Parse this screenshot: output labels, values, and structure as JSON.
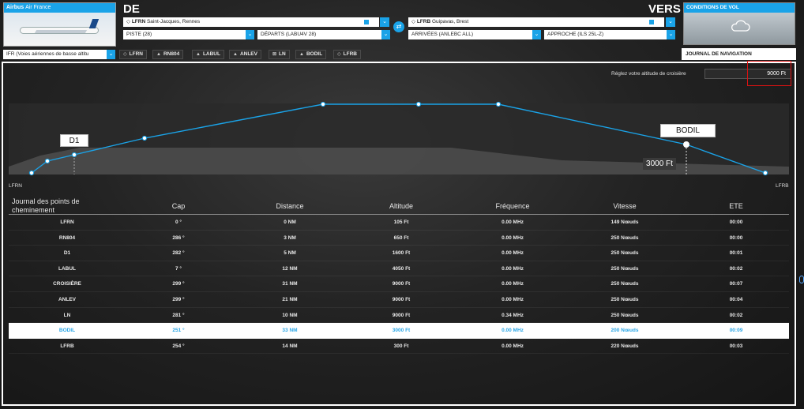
{
  "aircraft": {
    "maker": "Airbus",
    "operator": "Air France"
  },
  "departure": {
    "heading": "DE",
    "airport_code": "LFRN",
    "airport_name": "Saint-Jacques, Rennes",
    "runway": "PISTE (28)",
    "procedure": "DÉPARTS (LABU4V 28)"
  },
  "arrival": {
    "heading": "VERS",
    "airport_code": "LFRB",
    "airport_name": "Guipavas, Brest",
    "procedure": "ARRIVÉES (ANLEBC ALL)",
    "approach": "APPROCHE (ILS 25L-Z)"
  },
  "weather": {
    "title": "CONDITIONS DE VOL",
    "icon": "cloud-icon"
  },
  "route_type": "IFR (Voies aériennes de basse altitu",
  "route_chips": [
    {
      "icon": "airport",
      "label": "LFRN"
    },
    {
      "icon": "triangle",
      "label": "RN804"
    },
    {
      "icon": "triangle",
      "label": "LABUL"
    },
    {
      "icon": "triangle",
      "label": "ANLEV"
    },
    {
      "icon": "vor",
      "label": "LN"
    },
    {
      "icon": "triangle",
      "label": "BODIL"
    },
    {
      "icon": "airport",
      "label": "LFRB"
    }
  ],
  "tabs": {
    "nav_log": "JOURNAL DE NAVIGATION"
  },
  "cruise": {
    "label": "Réglez votre altitude de croisière",
    "value": "9000 Ft"
  },
  "profile": {
    "start_label": "LFRN",
    "end_label": "LFRB",
    "callout_left": "D1",
    "callout_right": "BODIL",
    "callout_right_alt": "3000 Ft"
  },
  "table": {
    "headers": [
      "Journal des points de cheminement",
      "Cap",
      "Distance",
      "Altitude",
      "Fréquence",
      "Vitesse",
      "ETE"
    ],
    "rows": [
      [
        "LFRN",
        "0 °",
        "0 NM",
        "105 Ft",
        "0.00 MHz",
        "149 Nœuds",
        "00:00"
      ],
      [
        "RN804",
        "286 °",
        "3 NM",
        "650 Ft",
        "0.00 MHz",
        "250 Nœuds",
        "00:00"
      ],
      [
        "D1",
        "282 °",
        "5 NM",
        "1600 Ft",
        "0.00 MHz",
        "250 Nœuds",
        "00:01"
      ],
      [
        "LABUL",
        "7 °",
        "12 NM",
        "4050 Ft",
        "0.00 MHz",
        "250 Nœuds",
        "00:02"
      ],
      [
        "CROISIÈRE",
        "299 °",
        "31 NM",
        "9000 Ft",
        "0.00 MHz",
        "250 Nœuds",
        "00:07"
      ],
      [
        "ANLEV",
        "299 °",
        "21 NM",
        "9000 Ft",
        "0.00 MHz",
        "250 Nœuds",
        "00:04"
      ],
      [
        "LN",
        "281 °",
        "10 NM",
        "9000 Ft",
        "0.34 MHz",
        "250 Nœuds",
        "00:02"
      ],
      [
        "BODIL",
        "251 °",
        "33 NM",
        "3000 Ft",
        "0.00 MHz",
        "200 Nœuds",
        "00:09"
      ],
      [
        "LFRB",
        "254 °",
        "14 NM",
        "300 Ft",
        "0.00 MHz",
        "220 Nœuds",
        "00:03"
      ]
    ],
    "selected_row": 7
  },
  "colors": {
    "accent": "#1aa3e8",
    "highlight_border": "#dd1111",
    "selected_text": "#2aa6e6"
  }
}
